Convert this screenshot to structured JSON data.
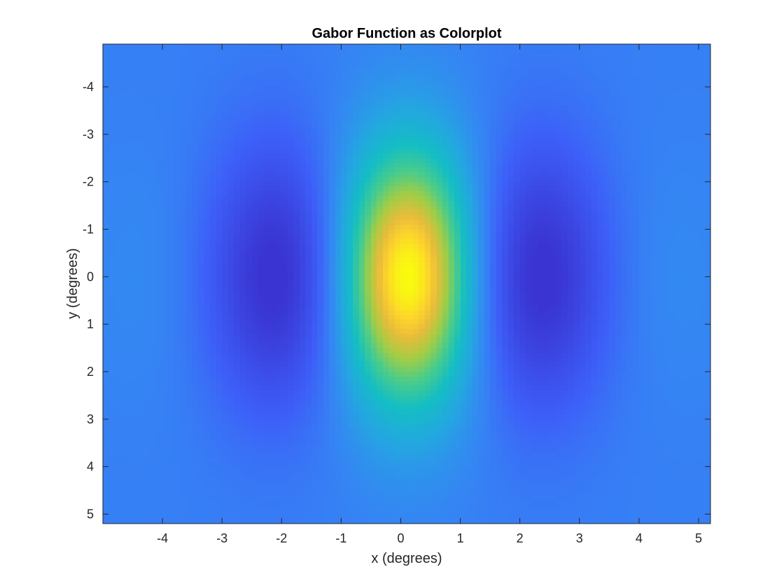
{
  "chart_data": {
    "type": "heatmap",
    "title": "Gabor Function as Colorplot",
    "xlabel": "x (degrees)",
    "ylabel": "y (degrees)",
    "xlim": [
      -5,
      5.2
    ],
    "ylim": [
      -4.9,
      5.2
    ],
    "y_direction": "reversed",
    "grid": false,
    "colormap": "parula",
    "xticks": [
      -4,
      -3,
      -2,
      -1,
      0,
      1,
      2,
      3,
      4,
      5
    ],
    "yticks": [
      -4,
      -3,
      -2,
      -1,
      0,
      1,
      2,
      3,
      4,
      5
    ],
    "function": {
      "form": "gaussian_envelope_times_cosine",
      "center_x": 0.12,
      "center_y": 0.0,
      "sigma_x": 2.0,
      "sigma_y": 2.0,
      "wavelength": 5.3,
      "orientation": "vertical stripes",
      "peak_value": 1.0,
      "trough_x_left": -2.5,
      "trough_x_right": 2.75,
      "trough_value": -0.45
    },
    "colors": {
      "peak": "#F9FB0E",
      "background": "#3585F4",
      "trough": "#3A35D2"
    }
  }
}
